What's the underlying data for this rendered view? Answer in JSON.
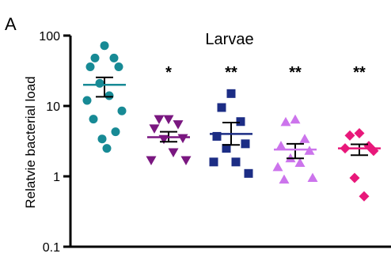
{
  "panel_label": "A",
  "chart_data": {
    "type": "scatter",
    "title": "Larvae",
    "ylabel": "Relatvie bacterial load",
    "xlabel": "",
    "yscale": "log",
    "ylim": [
      0.1,
      100
    ],
    "yticks": [
      {
        "value": 100,
        "label": "100"
      },
      {
        "value": 10,
        "label": "10"
      },
      {
        "value": 1,
        "label": "1"
      },
      {
        "value": 0.1,
        "label": "0.1"
      }
    ],
    "groups": [
      {
        "color": "#178a95",
        "marker": "circle",
        "significance": "",
        "mean": 20,
        "sem_upper": 25.5,
        "sem_lower": 13.5,
        "values": [
          72,
          48,
          48,
          36,
          36,
          21,
          14,
          12,
          8.5,
          6.5,
          4.3,
          3.4,
          2.5
        ]
      },
      {
        "color": "#7a1780",
        "marker": "triangle-down",
        "significance": "*",
        "mean": 3.6,
        "sem_upper": 4.3,
        "sem_lower": 3.1,
        "values": [
          6.5,
          6.5,
          5.5,
          4.8,
          3.5,
          3.4,
          2.2,
          1.7,
          1.7
        ]
      },
      {
        "color": "#1c2d85",
        "marker": "square",
        "significance": "**",
        "mean": 4.0,
        "sem_upper": 5.8,
        "sem_lower": 2.8,
        "values": [
          15,
          9.5,
          6.0,
          3.7,
          2.9,
          2.5,
          1.6,
          1.6,
          1.1
        ]
      },
      {
        "color": "#cc74ec",
        "marker": "triangle-up",
        "significance": "**",
        "mean": 2.4,
        "sem_upper": 2.9,
        "sem_lower": 1.8,
        "values": [
          6.4,
          5.9,
          3.4,
          2.7,
          2.3,
          1.8,
          1.55,
          1.35,
          0.95,
          0.9
        ]
      },
      {
        "color": "#e8187a",
        "marker": "diamond",
        "significance": "**",
        "mean": 2.5,
        "sem_upper": 2.85,
        "sem_lower": 2.0,
        "values": [
          4.1,
          3.8,
          2.7,
          2.5,
          2.3,
          0.95,
          0.52
        ]
      }
    ]
  }
}
